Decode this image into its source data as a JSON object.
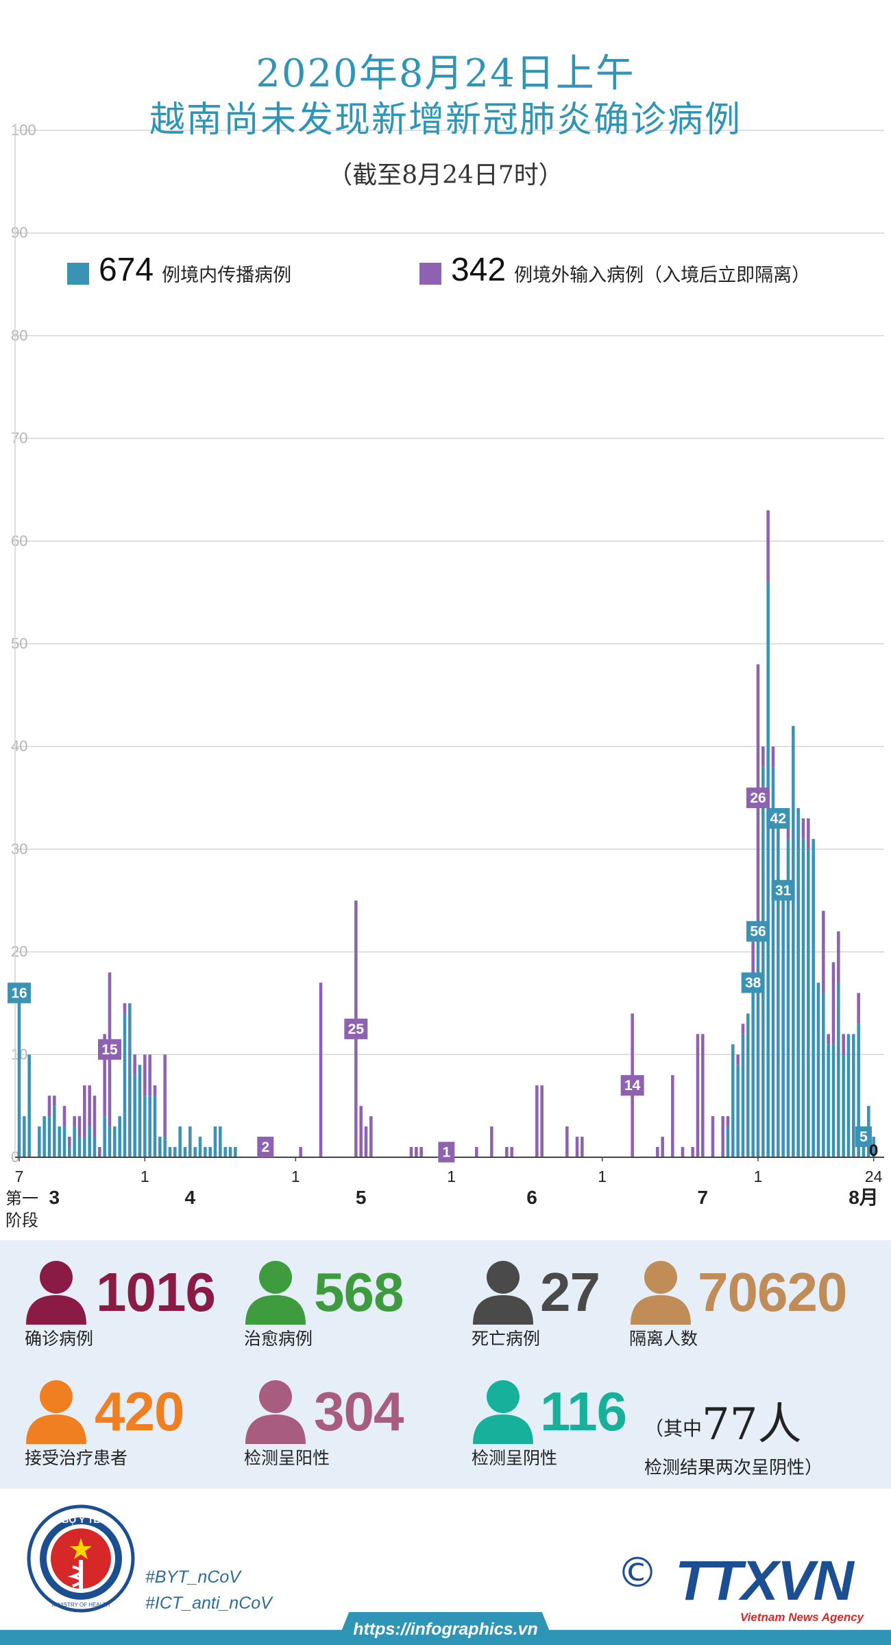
{
  "header": {
    "title_line1": "2020年8月24日上午",
    "title_line2": "越南尚未发现新增新冠肺炎确诊病例",
    "subtitle": "（截至8月24日7时）"
  },
  "legend": {
    "domestic_count": "674",
    "domestic_label": "例境内传播病例",
    "imported_count": "342",
    "imported_label": "例境外输入病例（入境后立即隔离）"
  },
  "colors": {
    "domestic": "#3a93b4",
    "imported": "#8e62b0",
    "title": "#2e95b7",
    "confirmed": "#8a1b45",
    "recovered": "#3e9c3f",
    "deaths": "#4a4a4a",
    "quarantine": "#c08c58",
    "treatment": "#f07f22",
    "positive": "#a85d7e",
    "negative": "#17b09a"
  },
  "chart_data": {
    "type": "bar",
    "stacked": true,
    "ylim": [
      0,
      100
    ],
    "yticks": [
      "0",
      "10",
      "20",
      "30",
      "40",
      "50",
      "60",
      "70",
      "80",
      "90",
      "100"
    ],
    "x_tick_labels": [
      {
        "label": "7",
        "index": 0
      },
      {
        "label": "1",
        "index": 25
      },
      {
        "label": "1",
        "index": 55
      },
      {
        "label": "1",
        "index": 86
      },
      {
        "label": "1",
        "index": 116
      },
      {
        "label": "1",
        "index": 147
      },
      {
        "label": "24",
        "index": 170
      }
    ],
    "month_labels": [
      {
        "label": "3",
        "index": 7
      },
      {
        "label": "4",
        "index": 34
      },
      {
        "label": "5",
        "index": 68
      },
      {
        "label": "6",
        "index": 102
      },
      {
        "label": "7",
        "index": 136
      },
      {
        "label": "8月",
        "index": 168
      }
    ],
    "phase_label": [
      "第一",
      "阶段"
    ],
    "series": [
      {
        "name": "例境内传播病例",
        "values": [
          16,
          4,
          10,
          0,
          3,
          4,
          4,
          5,
          3,
          3,
          1,
          3,
          2,
          2,
          3,
          2,
          0,
          4,
          3,
          3,
          4,
          14,
          15,
          8,
          9,
          6,
          6,
          6,
          2,
          2,
          1,
          1,
          3,
          1,
          3,
          1,
          2,
          1,
          1,
          3,
          3,
          1,
          1,
          1,
          0,
          0,
          0,
          0,
          0,
          0,
          0,
          0,
          0,
          0,
          0,
          0,
          0,
          0,
          0,
          0,
          0,
          0,
          0,
          0,
          0,
          0,
          0,
          0,
          0,
          0,
          0,
          0,
          0,
          0,
          0,
          0,
          0,
          0,
          0,
          0,
          0,
          0,
          0,
          0,
          0,
          0,
          0,
          0,
          0,
          0,
          0,
          0,
          0,
          0,
          0,
          0,
          0,
          0,
          0,
          0,
          0,
          0,
          0,
          0,
          0,
          0,
          0,
          0,
          0,
          0,
          0,
          0,
          0,
          0,
          0,
          0,
          0,
          0,
          0,
          0,
          0,
          0,
          0,
          0,
          0,
          0,
          0,
          0,
          0,
          0,
          0,
          0,
          0,
          0,
          0,
          0,
          0,
          0,
          0,
          0,
          0,
          3,
          11,
          9,
          12,
          14,
          17,
          22,
          38,
          56,
          38,
          33,
          26,
          31,
          42,
          34,
          31,
          30,
          31,
          17,
          16,
          11,
          11,
          17,
          10,
          12,
          12,
          13,
          2,
          5,
          2,
          0
        ],
        "value_labels": [
          {
            "index": 0,
            "value": 16
          },
          {
            "index": 147,
            "value": 56
          },
          {
            "index": 146,
            "value": 38
          },
          {
            "index": 151,
            "value": 42
          },
          {
            "index": 152,
            "value": 31
          },
          {
            "index": 168,
            "value": 5
          },
          {
            "index": 170,
            "value": 0
          }
        ]
      },
      {
        "name": "例境外输入病例（入境后立即隔离）",
        "values": [
          0,
          0,
          0,
          0,
          0,
          0,
          2,
          1,
          0,
          2,
          1,
          1,
          2,
          5,
          4,
          4,
          1,
          8,
          15,
          0,
          0,
          1,
          0,
          2,
          0,
          4,
          4,
          1,
          0,
          8,
          0,
          0,
          0,
          0,
          0,
          0,
          0,
          0,
          0,
          0,
          0,
          0,
          0,
          0,
          0,
          0,
          0,
          0,
          0,
          2,
          0,
          0,
          0,
          0,
          0,
          0,
          1,
          0,
          0,
          0,
          17,
          0,
          0,
          0,
          0,
          0,
          0,
          25,
          5,
          3,
          4,
          0,
          0,
          0,
          0,
          0,
          0,
          0,
          1,
          1,
          1,
          0,
          0,
          0,
          0,
          1,
          0,
          0,
          0,
          0,
          0,
          1,
          0,
          0,
          3,
          0,
          0,
          1,
          1,
          0,
          0,
          0,
          0,
          7,
          7,
          0,
          0,
          0,
          0,
          3,
          0,
          2,
          2,
          0,
          0,
          0,
          0,
          0,
          0,
          0,
          0,
          0,
          14,
          0,
          0,
          0,
          0,
          1,
          2,
          0,
          8,
          0,
          1,
          0,
          1,
          12,
          12,
          0,
          4,
          0,
          4,
          1,
          0,
          1,
          1,
          0,
          4,
          26,
          2,
          7,
          2,
          1,
          1,
          3,
          0,
          0,
          2,
          3,
          0,
          0,
          8,
          1,
          8,
          5,
          2,
          0,
          0,
          3,
          0,
          0,
          0,
          0
        ],
        "value_labels": [
          {
            "index": 18,
            "value": 15
          },
          {
            "index": 49,
            "value": 2
          },
          {
            "index": 67,
            "value": 25
          },
          {
            "index": 85,
            "value": 1
          },
          {
            "index": 122,
            "value": 14
          },
          {
            "index": 147,
            "value": 26
          }
        ]
      }
    ]
  },
  "stats": [
    {
      "id": "confirmed",
      "value": "1016",
      "label": "确诊病例"
    },
    {
      "id": "recovered",
      "value": "568",
      "label": "治愈病例"
    },
    {
      "id": "deaths",
      "value": "27",
      "label": "死亡病例"
    },
    {
      "id": "quarantine",
      "value": "70620",
      "label": "隔离人数"
    },
    {
      "id": "treatment",
      "value": "420",
      "label": "接受治疗患者"
    },
    {
      "id": "positive",
      "value": "304",
      "label": "检测呈阳性"
    },
    {
      "id": "negative",
      "value": "116",
      "label": "检测呈阴性"
    }
  ],
  "note": {
    "prefix": "（其中",
    "number": "77人",
    "suffix": "检测结果两次呈阴性）"
  },
  "footer": {
    "logo_text": "BỘ Y TẾ",
    "logo_sub": "MINISTRY OF HEALTH",
    "hashtag1": "#BYT_nCoV",
    "hashtag2": "#ICT_anti_nCoV",
    "url": "https://infographics.vn",
    "copyright": "©",
    "agency": "TTXVN",
    "agency_sub": "Vietnam News Agency"
  }
}
